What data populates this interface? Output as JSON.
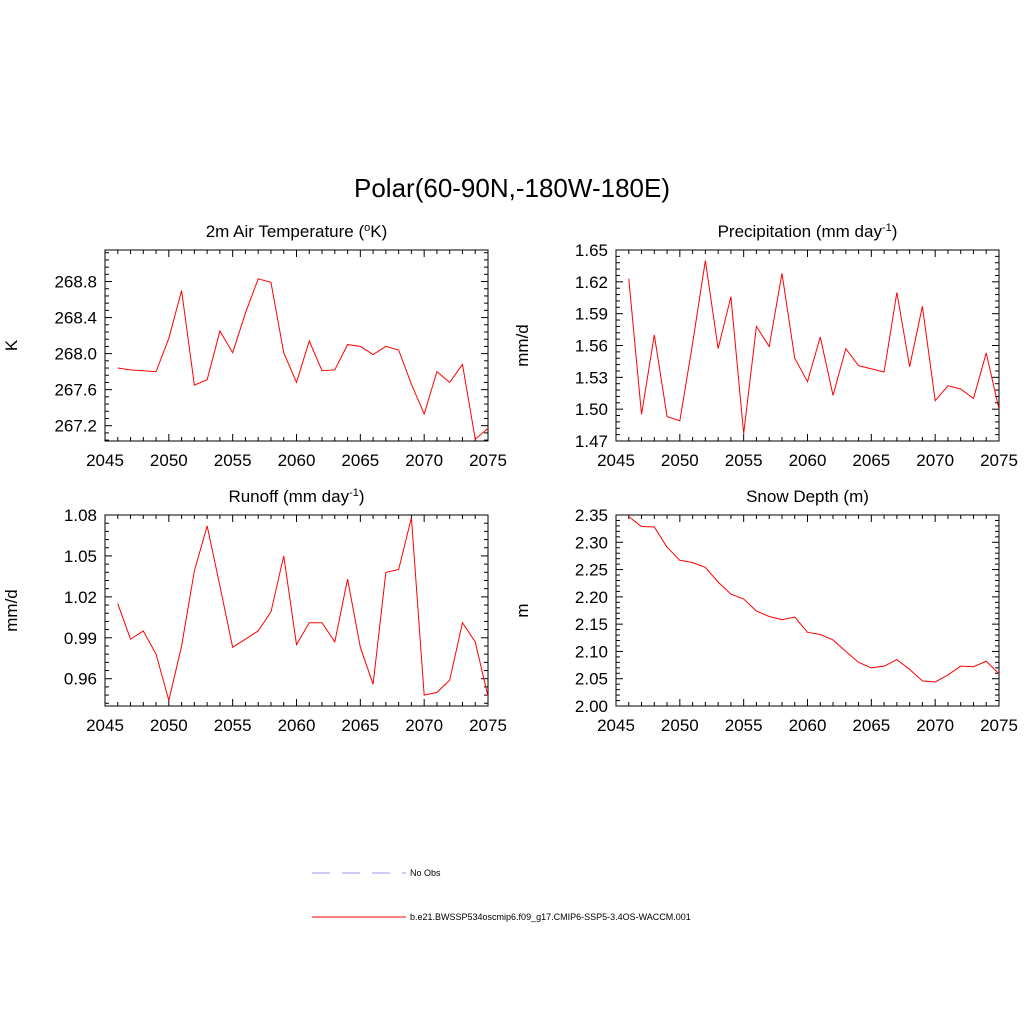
{
  "title": "Polar(60-90N,-180W-180E)",
  "colors": {
    "series": "#ff0000",
    "obs": "#9999ee",
    "axis": "#000000"
  },
  "legend": {
    "obs_label": "No Obs",
    "model_label": "b.e21.BWSSP534oscmip6.f09_g17.CMIP6-SSP5-3.4OS-WACCM.001"
  },
  "chart_data": [
    {
      "type": "line",
      "title_main": "2m Air Temperature (",
      "title_sup": "o",
      "title_tail": "K)",
      "ylabel": "K",
      "xlim": [
        2045,
        2075
      ],
      "ylim": [
        267.03,
        269.15
      ],
      "xticks": [
        2045,
        2050,
        2055,
        2060,
        2065,
        2070,
        2075
      ],
      "xtick_labels": [
        "2045",
        "2050",
        "2055",
        "2060",
        "2065",
        "2070",
        "2075"
      ],
      "yticks": [
        267.2,
        267.6,
        268.0,
        268.4,
        268.8
      ],
      "ytick_labels": [
        "267.2",
        "267.6",
        "268.0",
        "268.4",
        "268.8"
      ],
      "x": [
        2046,
        2047,
        2048,
        2049,
        2050,
        2051,
        2052,
        2053,
        2054,
        2055,
        2056,
        2057,
        2058,
        2059,
        2060,
        2061,
        2062,
        2063,
        2064,
        2065,
        2066,
        2067,
        2068,
        2069,
        2070,
        2071,
        2072,
        2073,
        2074,
        2075
      ],
      "values": [
        267.84,
        267.82,
        267.81,
        267.8,
        268.17,
        268.7,
        267.65,
        267.71,
        268.25,
        268.01,
        268.45,
        268.83,
        268.79,
        268.01,
        267.68,
        268.14,
        267.81,
        267.82,
        268.1,
        268.08,
        267.99,
        268.08,
        268.04,
        267.66,
        267.33,
        267.8,
        267.68,
        267.88,
        267.05,
        267.17
      ],
      "series_name": "b.e21.BWSSP534oscmip6.f09_g17.CMIP6-SSP5-3.4OS-WACCM.001"
    },
    {
      "type": "line",
      "title_main": "Precipitation (mm day",
      "title_sup": "-1",
      "title_tail": ")",
      "ylabel": "mm/d",
      "xlim": [
        2045,
        2075
      ],
      "ylim": [
        1.47,
        1.65
      ],
      "xticks": [
        2045,
        2050,
        2055,
        2060,
        2065,
        2070,
        2075
      ],
      "xtick_labels": [
        "2045",
        "2050",
        "2055",
        "2060",
        "2065",
        "2070",
        "2075"
      ],
      "yticks": [
        1.47,
        1.5,
        1.53,
        1.56,
        1.59,
        1.62,
        1.65
      ],
      "ytick_labels": [
        "1.47",
        "1.50",
        "1.53",
        "1.56",
        "1.59",
        "1.62",
        "1.65"
      ],
      "x": [
        2046,
        2047,
        2048,
        2049,
        2050,
        2051,
        2052,
        2053,
        2054,
        2055,
        2056,
        2057,
        2058,
        2059,
        2060,
        2061,
        2062,
        2063,
        2064,
        2065,
        2066,
        2067,
        2068,
        2069,
        2070,
        2071,
        2072,
        2073,
        2074,
        2075
      ],
      "values": [
        1.623,
        1.495,
        1.57,
        1.493,
        1.489,
        1.562,
        1.64,
        1.557,
        1.606,
        1.477,
        1.578,
        1.559,
        1.628,
        1.548,
        1.526,
        1.568,
        1.513,
        1.557,
        1.541,
        1.538,
        1.535,
        1.61,
        1.54,
        1.597,
        1.508,
        1.522,
        1.519,
        1.51,
        1.553,
        1.5
      ],
      "series_name": "b.e21.BWSSP534oscmip6.f09_g17.CMIP6-SSP5-3.4OS-WACCM.001"
    },
    {
      "type": "line",
      "title_main": "Runoff (mm day",
      "title_sup": "-1",
      "title_tail": ")",
      "ylabel": "mm/d",
      "xlim": [
        2045,
        2075
      ],
      "ylim": [
        0.94,
        1.08
      ],
      "xticks": [
        2045,
        2050,
        2055,
        2060,
        2065,
        2070,
        2075
      ],
      "xtick_labels": [
        "2045",
        "2050",
        "2055",
        "2060",
        "2065",
        "2070",
        "2075"
      ],
      "yticks": [
        0.96,
        0.99,
        1.02,
        1.05,
        1.08
      ],
      "ytick_labels": [
        "0.96",
        "0.99",
        "1.02",
        "1.05",
        "1.08"
      ],
      "x": [
        2046,
        2047,
        2048,
        2049,
        2050,
        2051,
        2052,
        2053,
        2054,
        2055,
        2056,
        2057,
        2058,
        2059,
        2060,
        2061,
        2062,
        2063,
        2064,
        2065,
        2066,
        2067,
        2068,
        2069,
        2070,
        2071,
        2072,
        2073,
        2074,
        2075
      ],
      "values": [
        1.015,
        0.989,
        0.995,
        0.978,
        0.944,
        0.984,
        1.039,
        1.072,
        1.028,
        0.983,
        0.989,
        0.995,
        1.009,
        1.05,
        0.985,
        1.001,
        1.001,
        0.987,
        1.033,
        0.983,
        0.956,
        1.038,
        1.04,
        1.078,
        0.948,
        0.95,
        0.959,
        1.001,
        0.987,
        0.947
      ],
      "series_name": "b.e21.BWSSP534oscmip6.f09_g17.CMIP6-SSP5-3.4OS-WACCM.001"
    },
    {
      "type": "line",
      "title_main": "Snow Depth (m)",
      "title_sup": "",
      "title_tail": "",
      "ylabel": "m",
      "xlim": [
        2045,
        2075
      ],
      "ylim": [
        2.0,
        2.35
      ],
      "xticks": [
        2045,
        2050,
        2055,
        2060,
        2065,
        2070,
        2075
      ],
      "xtick_labels": [
        "2045",
        "2050",
        "2055",
        "2060",
        "2065",
        "2070",
        "2075"
      ],
      "yticks": [
        2.0,
        2.05,
        2.1,
        2.15,
        2.2,
        2.25,
        2.3,
        2.35
      ],
      "ytick_labels": [
        "2.00",
        "2.05",
        "2.10",
        "2.15",
        "2.20",
        "2.25",
        "2.30",
        "2.35"
      ],
      "x": [
        2046,
        2047,
        2048,
        2049,
        2050,
        2051,
        2052,
        2053,
        2054,
        2055,
        2056,
        2057,
        2058,
        2059,
        2060,
        2061,
        2062,
        2063,
        2064,
        2065,
        2066,
        2067,
        2068,
        2069,
        2070,
        2071,
        2072,
        2073,
        2074,
        2075
      ],
      "values": [
        2.347,
        2.329,
        2.328,
        2.291,
        2.267,
        2.263,
        2.254,
        2.227,
        2.205,
        2.196,
        2.174,
        2.164,
        2.158,
        2.163,
        2.135,
        2.131,
        2.121,
        2.1,
        2.08,
        2.07,
        2.073,
        2.085,
        2.067,
        2.046,
        2.044,
        2.057,
        2.073,
        2.072,
        2.082,
        2.059
      ],
      "series_name": "b.e21.BWSSP534oscmip6.f09_g17.CMIP6-SSP5-3.4OS-WACCM.001"
    }
  ]
}
